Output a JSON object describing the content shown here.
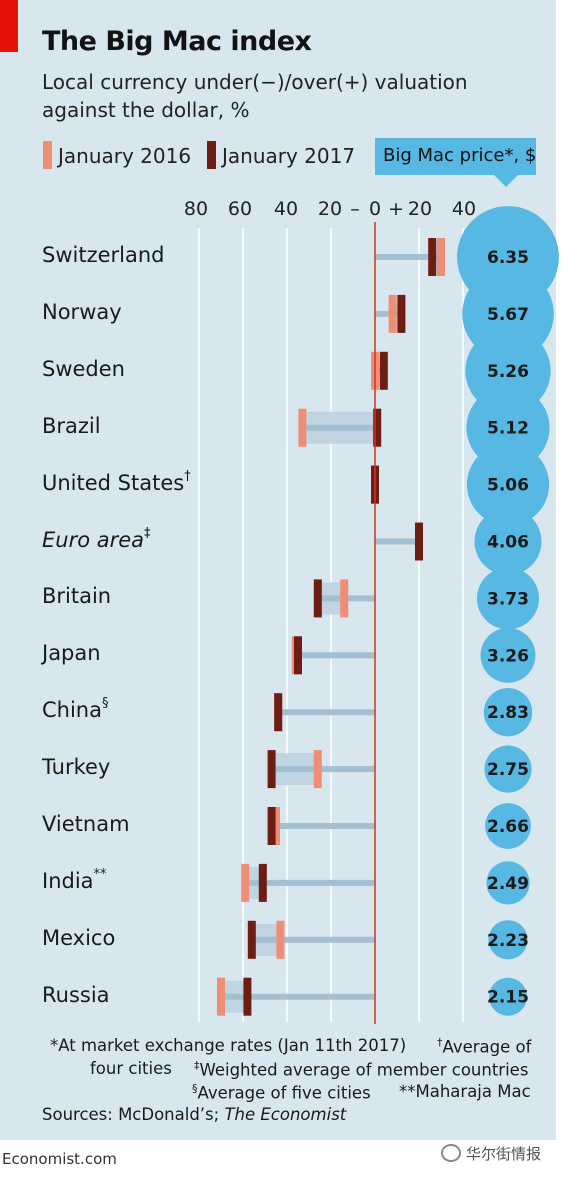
{
  "header": {
    "title": "The Big Mac index",
    "subtitle_line1": "Local currency under(−)/over(+) valuation",
    "subtitle_line2": "against the dollar, %"
  },
  "legend": {
    "jan2016": "January 2016",
    "jan2017": "January 2017",
    "price": "Big Mac price*, $"
  },
  "colors": {
    "jan2016": "#ee8f75",
    "jan2017": "#6e1d14",
    "connector": "#a3c0d3",
    "band": "#c0d4e1",
    "bubble": "#56b8e3",
    "zero_line": "#d9301c",
    "panel": "#d8e6ee"
  },
  "chart_data": {
    "type": "dot-range",
    "xaxis_ticks": [
      "80",
      "60",
      "40",
      "20",
      "–",
      "0",
      "+",
      "20",
      "40"
    ],
    "xlim": [
      -80,
      40
    ],
    "series": [
      {
        "name": "January 2016",
        "values": [
          30,
          8,
          0,
          -33,
          0,
          20,
          -14,
          -36,
          -44,
          -26,
          -45,
          -59,
          -43,
          -70
        ]
      },
      {
        "name": "January 2017",
        "values": [
          26,
          12,
          4,
          1,
          0,
          20,
          -26,
          -35,
          -44,
          -47,
          -47,
          -51,
          -56,
          -58
        ]
      }
    ],
    "categories": [
      "Switzerland",
      "Norway",
      "Sweden",
      "Brazil",
      "United States",
      "Euro area",
      "Britain",
      "Japan",
      "China",
      "Turkey",
      "Vietnam",
      "India",
      "Mexico",
      "Russia"
    ],
    "category_marks": [
      "",
      "",
      "",
      "",
      "†",
      "‡",
      "",
      "",
      "§",
      "",
      "",
      "**",
      "",
      ""
    ],
    "category_italic": [
      false,
      false,
      false,
      false,
      false,
      true,
      false,
      false,
      false,
      false,
      false,
      false,
      false,
      false
    ],
    "big_mac_price": [
      "6.35",
      "5.67",
      "5.26",
      "5.12",
      "5.06",
      "4.06",
      "3.73",
      "3.26",
      "2.83",
      "2.75",
      "2.66",
      "2.49",
      "2.23",
      "2.15"
    ]
  },
  "notes": {
    "n1a": "*At market exchange rates (Jan 11th 2017)",
    "n1b_mark": "†",
    "n1b": "Average of",
    "n2a": "four cities",
    "n2b_mark": "‡",
    "n2b": "Weighted average of member countries",
    "n3a_mark": "§",
    "n3a": "Average of five cities",
    "n3b": "**Maharaja Mac",
    "sources_prefix": "Sources: McDonald’s; ",
    "sources_italic": "The Economist"
  },
  "footer": {
    "site": "Economist.com",
    "watermark": "华尔街情报"
  }
}
